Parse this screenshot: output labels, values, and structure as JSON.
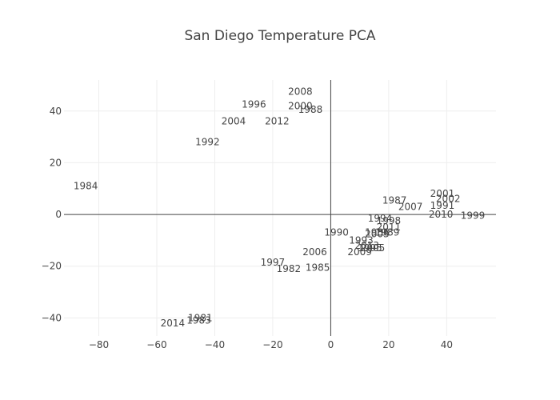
{
  "chart_data": {
    "type": "scatter",
    "title": "San Diego Temperature PCA",
    "xlabel": "",
    "ylabel": "",
    "xlim": [
      -92,
      57
    ],
    "ylim": [
      -47,
      52
    ],
    "x_ticks": [
      -80,
      -60,
      -40,
      -20,
      0,
      20,
      40
    ],
    "y_ticks": [
      -40,
      -20,
      0,
      20,
      40
    ],
    "x_tick_labels": [
      "−80",
      "−60",
      "−40",
      "−20",
      "0",
      "20",
      "40"
    ],
    "y_tick_labels": [
      "−40",
      "−20",
      "0",
      "20",
      "40"
    ],
    "grid": true,
    "mode": "text",
    "points": [
      {
        "label": "2008",
        "x": -10.5,
        "y": 47.5
      },
      {
        "label": "1996",
        "x": -26.5,
        "y": 42.5
      },
      {
        "label": "2000",
        "x": -10.5,
        "y": 42.0
      },
      {
        "label": "1988",
        "x": -7.0,
        "y": 40.5
      },
      {
        "label": "2004",
        "x": -33.5,
        "y": 36.0
      },
      {
        "label": "2012",
        "x": -18.5,
        "y": 36.0
      },
      {
        "label": "1992",
        "x": -42.5,
        "y": 28.0
      },
      {
        "label": "1984",
        "x": -84.5,
        "y": 11.0
      },
      {
        "label": "2001",
        "x": 38.5,
        "y": 8.0
      },
      {
        "label": "2002",
        "x": 40.5,
        "y": 6.0
      },
      {
        "label": "1987",
        "x": 22.0,
        "y": 5.5
      },
      {
        "label": "1991",
        "x": 38.5,
        "y": 3.5
      },
      {
        "label": "2007",
        "x": 27.5,
        "y": 3.0
      },
      {
        "label": "2010",
        "x": 38.0,
        "y": 0.0
      },
      {
        "label": "1999",
        "x": 49.0,
        "y": -0.5
      },
      {
        "label": "1994",
        "x": 17.0,
        "y": -1.5
      },
      {
        "label": "1998",
        "x": 20.0,
        "y": -2.5
      },
      {
        "label": "2011",
        "x": 20.0,
        "y": -5.0
      },
      {
        "label": "1990",
        "x": 2.0,
        "y": -7.0
      },
      {
        "label": "1986",
        "x": 16.0,
        "y": -7.0
      },
      {
        "label": "1989",
        "x": 19.5,
        "y": -7.0
      },
      {
        "label": "2003",
        "x": 16.0,
        "y": -7.5
      },
      {
        "label": "1993",
        "x": 10.5,
        "y": -10.0
      },
      {
        "label": "2013",
        "x": 12.5,
        "y": -12.0
      },
      {
        "label": "1995",
        "x": 13.5,
        "y": -13.0
      },
      {
        "label": "2005",
        "x": 14.5,
        "y": -13.0
      },
      {
        "label": "2009",
        "x": 10.0,
        "y": -14.5
      },
      {
        "label": "2006",
        "x": -5.5,
        "y": -14.5
      },
      {
        "label": "1997",
        "x": -20.0,
        "y": -18.5
      },
      {
        "label": "1982",
        "x": -14.5,
        "y": -21.0
      },
      {
        "label": "1985",
        "x": -4.5,
        "y": -20.5
      },
      {
        "label": "1981",
        "x": -45.0,
        "y": -40.0
      },
      {
        "label": "1983",
        "x": -45.5,
        "y": -41.0
      },
      {
        "label": "2014",
        "x": -54.5,
        "y": -42.0
      }
    ]
  },
  "colors": {
    "text": "#444444",
    "grid": "#eeeeee",
    "zeroline": "#444444",
    "background": "#ffffff"
  }
}
